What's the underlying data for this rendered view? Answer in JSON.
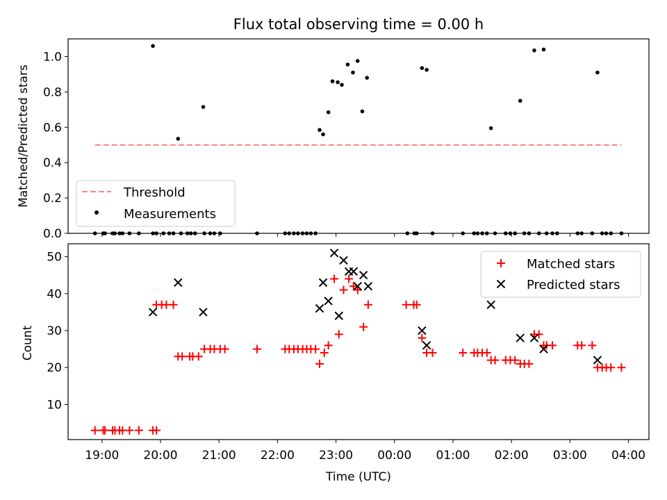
{
  "chart_data": [
    {
      "type": "scatter",
      "title": "Flux total observing time = 0.00 h",
      "xlabel": "",
      "ylabel": "Matched/Predicted stars",
      "x_unit": "hours since 19:00 UTC",
      "xlim": [
        -0.58,
        9.35
      ],
      "ylim": [
        0.0,
        1.1
      ],
      "yticks": [
        0.0,
        0.2,
        0.4,
        0.6,
        0.8,
        1.0
      ],
      "ytick_labels": [
        "0.0",
        "0.2",
        "0.4",
        "0.6",
        "0.8",
        "1.0"
      ],
      "threshold": {
        "name": "Threshold",
        "y": 0.5,
        "x_range": [
          -0.12,
          8.88
        ],
        "color": "#ff8080"
      },
      "series": [
        {
          "name": "Measurements",
          "color": "#000000",
          "points": [
            [
              0.87,
              1.06
            ],
            [
              1.3,
              0.535
            ],
            [
              1.73,
              0.715
            ],
            [
              3.72,
              0.585
            ],
            [
              3.78,
              0.56
            ],
            [
              3.87,
              0.685
            ],
            [
              3.94,
              0.86
            ],
            [
              4.03,
              0.855
            ],
            [
              4.1,
              0.84
            ],
            [
              4.2,
              0.955
            ],
            [
              4.29,
              0.91
            ],
            [
              4.37,
              0.975
            ],
            [
              4.45,
              0.69
            ],
            [
              4.53,
              0.88
            ],
            [
              5.47,
              0.935
            ],
            [
              5.55,
              0.925
            ],
            [
              6.65,
              0.595
            ],
            [
              7.15,
              0.75
            ],
            [
              7.39,
              1.035
            ],
            [
              7.55,
              1.04
            ],
            [
              8.47,
              0.91
            ],
            [
              -0.12,
              0.0
            ],
            [
              0.02,
              0.0
            ],
            [
              0.05,
              0.0
            ],
            [
              0.18,
              0.0
            ],
            [
              0.22,
              0.0
            ],
            [
              0.3,
              0.0
            ],
            [
              0.35,
              0.0
            ],
            [
              0.47,
              0.0
            ],
            [
              0.63,
              0.0
            ],
            [
              0.87,
              0.0
            ],
            [
              0.93,
              0.0
            ],
            [
              1.05,
              0.0
            ],
            [
              1.15,
              0.0
            ],
            [
              1.22,
              0.0
            ],
            [
              1.35,
              0.0
            ],
            [
              1.46,
              0.0
            ],
            [
              1.52,
              0.0
            ],
            [
              1.59,
              0.0
            ],
            [
              1.75,
              0.0
            ],
            [
              1.85,
              0.0
            ],
            [
              1.92,
              0.0
            ],
            [
              2.02,
              0.0
            ],
            [
              2.65,
              0.0
            ],
            [
              3.13,
              0.0
            ],
            [
              3.2,
              0.0
            ],
            [
              3.28,
              0.0
            ],
            [
              3.35,
              0.0
            ],
            [
              3.43,
              0.0
            ],
            [
              3.5,
              0.0
            ],
            [
              3.57,
              0.0
            ],
            [
              3.65,
              0.0
            ],
            [
              5.22,
              0.0
            ],
            [
              5.34,
              0.0
            ],
            [
              5.38,
              0.0
            ],
            [
              5.65,
              0.0
            ],
            [
              6.17,
              0.0
            ],
            [
              6.36,
              0.0
            ],
            [
              6.42,
              0.0
            ],
            [
              6.5,
              0.0
            ],
            [
              6.58,
              0.0
            ],
            [
              6.72,
              0.0
            ],
            [
              6.9,
              0.0
            ],
            [
              6.98,
              0.0
            ],
            [
              7.06,
              0.0
            ],
            [
              7.22,
              0.0
            ],
            [
              7.3,
              0.0
            ],
            [
              7.47,
              0.0
            ],
            [
              7.6,
              0.0
            ],
            [
              7.7,
              0.0
            ],
            [
              7.78,
              0.0
            ],
            [
              8.13,
              0.0
            ],
            [
              8.2,
              0.0
            ],
            [
              8.38,
              0.0
            ],
            [
              8.55,
              0.0
            ],
            [
              8.62,
              0.0
            ],
            [
              8.7,
              0.0
            ],
            [
              8.88,
              0.0
            ]
          ]
        }
      ],
      "legend": {
        "position": "lower-left",
        "entries": [
          "Threshold",
          "Measurements"
        ]
      }
    },
    {
      "type": "scatter",
      "title": "",
      "xlabel": "Time (UTC)",
      "ylabel": "Count",
      "x_unit": "hours since 19:00 UTC",
      "xlim": [
        -0.58,
        9.35
      ],
      "ylim": [
        0.5,
        53.5
      ],
      "xticks": [
        0,
        1,
        2,
        3,
        4,
        5,
        6,
        7,
        8,
        9
      ],
      "xtick_labels": [
        "19:00",
        "20:00",
        "21:00",
        "22:00",
        "23:00",
        "00:00",
        "01:00",
        "02:00",
        "03:00",
        "04:00"
      ],
      "yticks": [
        10,
        20,
        30,
        40,
        50
      ],
      "ytick_labels": [
        "10",
        "20",
        "30",
        "40",
        "50"
      ],
      "series": [
        {
          "name": "Matched stars",
          "marker": "plus",
          "color": "#ff0000",
          "points": [
            [
              -0.12,
              3
            ],
            [
              0.02,
              3
            ],
            [
              0.05,
              3
            ],
            [
              0.18,
              3
            ],
            [
              0.22,
              3
            ],
            [
              0.3,
              3
            ],
            [
              0.35,
              3
            ],
            [
              0.47,
              3
            ],
            [
              0.63,
              3
            ],
            [
              0.87,
              3
            ],
            [
              0.93,
              3
            ],
            [
              0.93,
              37
            ],
            [
              1.02,
              37
            ],
            [
              1.1,
              37
            ],
            [
              1.22,
              37
            ],
            [
              1.3,
              23
            ],
            [
              1.37,
              23
            ],
            [
              1.5,
              23
            ],
            [
              1.55,
              23
            ],
            [
              1.65,
              23
            ],
            [
              1.75,
              25
            ],
            [
              1.85,
              25
            ],
            [
              1.92,
              25
            ],
            [
              2.02,
              25
            ],
            [
              2.1,
              25
            ],
            [
              2.65,
              25
            ],
            [
              3.13,
              25
            ],
            [
              3.2,
              25
            ],
            [
              3.28,
              25
            ],
            [
              3.35,
              25
            ],
            [
              3.43,
              25
            ],
            [
              3.5,
              25
            ],
            [
              3.57,
              25
            ],
            [
              3.65,
              25
            ],
            [
              3.72,
              21
            ],
            [
              3.8,
              24
            ],
            [
              3.87,
              26
            ],
            [
              3.97,
              44
            ],
            [
              4.05,
              29
            ],
            [
              4.13,
              41
            ],
            [
              4.22,
              44
            ],
            [
              4.3,
              42
            ],
            [
              4.37,
              41
            ],
            [
              4.47,
              31
            ],
            [
              4.55,
              37
            ],
            [
              5.2,
              37
            ],
            [
              5.33,
              37
            ],
            [
              5.38,
              37
            ],
            [
              5.47,
              28
            ],
            [
              5.55,
              24
            ],
            [
              5.65,
              24
            ],
            [
              6.17,
              24
            ],
            [
              6.36,
              24
            ],
            [
              6.42,
              24
            ],
            [
              6.5,
              24
            ],
            [
              6.58,
              24
            ],
            [
              6.65,
              22
            ],
            [
              6.72,
              22
            ],
            [
              6.9,
              22
            ],
            [
              6.98,
              22
            ],
            [
              7.06,
              22
            ],
            [
              7.15,
              21
            ],
            [
              7.22,
              21
            ],
            [
              7.3,
              21
            ],
            [
              7.39,
              29
            ],
            [
              7.47,
              29
            ],
            [
              7.55,
              26
            ],
            [
              7.6,
              26
            ],
            [
              7.7,
              26
            ],
            [
              8.13,
              26
            ],
            [
              8.2,
              26
            ],
            [
              8.38,
              26
            ],
            [
              8.47,
              20
            ],
            [
              8.55,
              20
            ],
            [
              8.62,
              20
            ],
            [
              8.7,
              20
            ],
            [
              8.88,
              20
            ]
          ]
        },
        {
          "name": "Predicted stars",
          "marker": "cross",
          "color": "#000000",
          "points": [
            [
              0.87,
              35
            ],
            [
              1.3,
              43
            ],
            [
              1.73,
              35
            ],
            [
              3.72,
              36
            ],
            [
              3.78,
              43
            ],
            [
              3.87,
              38
            ],
            [
              3.97,
              51
            ],
            [
              4.05,
              34
            ],
            [
              4.13,
              49
            ],
            [
              4.22,
              46
            ],
            [
              4.3,
              46
            ],
            [
              4.37,
              42
            ],
            [
              4.47,
              45
            ],
            [
              4.55,
              42
            ],
            [
              5.47,
              30
            ],
            [
              5.55,
              26
            ],
            [
              6.65,
              37
            ],
            [
              7.15,
              28
            ],
            [
              7.39,
              28
            ],
            [
              7.55,
              25
            ],
            [
              8.47,
              22
            ]
          ]
        }
      ],
      "legend": {
        "position": "upper-right",
        "entries": [
          "Matched stars",
          "Predicted stars"
        ]
      }
    }
  ]
}
